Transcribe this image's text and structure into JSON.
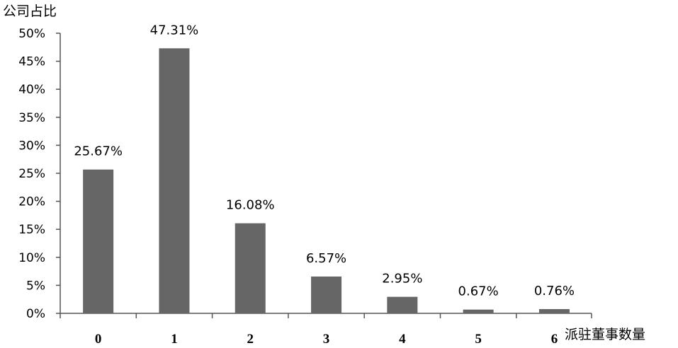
{
  "chart_data": {
    "type": "bar",
    "ylabel": "公司占比",
    "xlabel": "派驻董事数量",
    "categories": [
      "0",
      "1",
      "2",
      "3",
      "4",
      "5",
      "6"
    ],
    "values": [
      25.67,
      47.31,
      16.08,
      6.57,
      2.95,
      0.67,
      0.76
    ],
    "data_labels": [
      "25.67%",
      "47.31%",
      "16.08%",
      "6.57%",
      "2.95%",
      "0.67%",
      "0.76%"
    ],
    "y_ticks": [
      "0%",
      "5%",
      "10%",
      "15%",
      "20%",
      "25%",
      "30%",
      "35%",
      "40%",
      "45%",
      "50%"
    ],
    "ylim": [
      0,
      50
    ],
    "grid": false,
    "bar_color": "#666666"
  }
}
